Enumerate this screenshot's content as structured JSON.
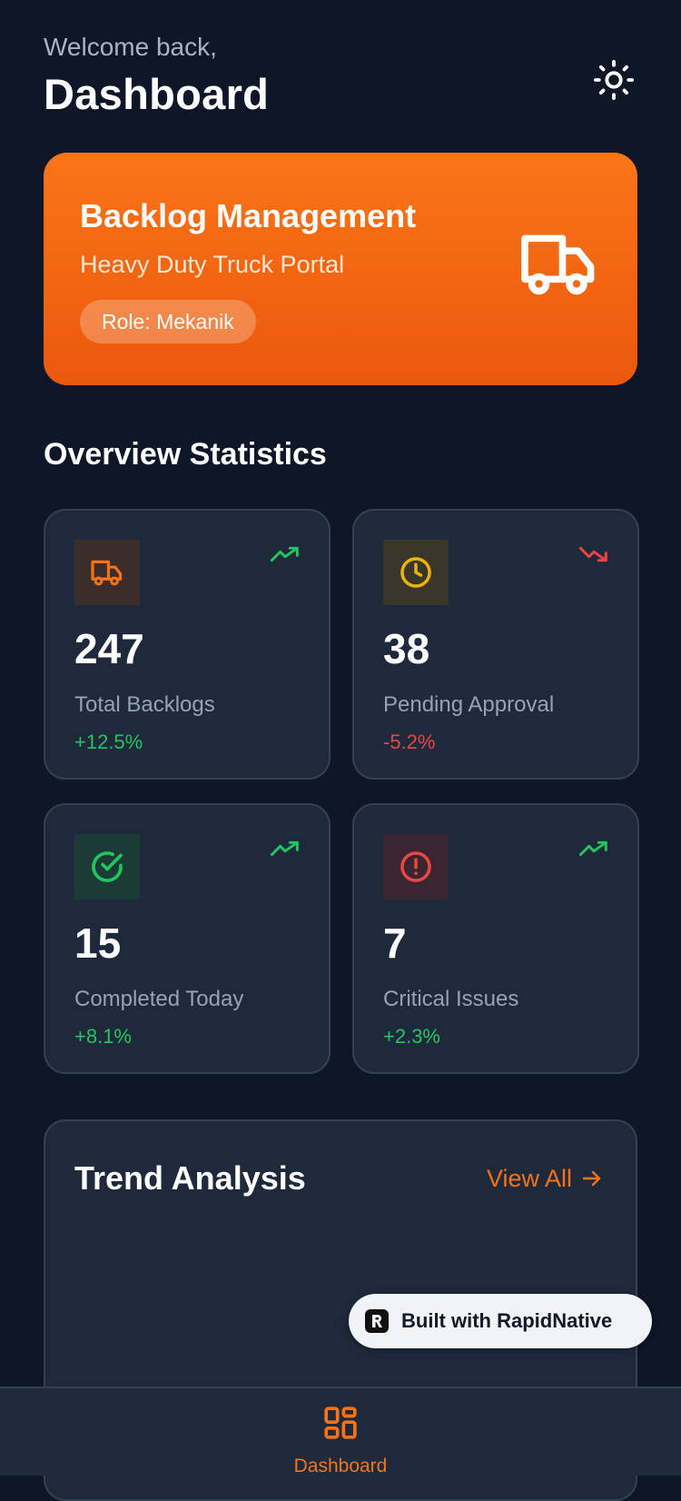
{
  "header": {
    "welcome": "Welcome back,",
    "title": "Dashboard",
    "theme_icon": "sun-icon"
  },
  "hero": {
    "title": "Backlog Management",
    "subtitle": "Heavy Duty Truck Portal",
    "role": "Role: Mekanik",
    "icon": "truck-icon"
  },
  "overview": {
    "title": "Overview Statistics",
    "cards": [
      {
        "value": "247",
        "label": "Total Backlogs",
        "change": "+12.5%",
        "trend": "up",
        "icon": "truck-icon",
        "accent": "#f97316",
        "change_color": "#22c55e"
      },
      {
        "value": "38",
        "label": "Pending Approval",
        "change": "-5.2%",
        "trend": "down",
        "icon": "clock-icon",
        "accent": "#eab308",
        "change_color": "#ef4444"
      },
      {
        "value": "15",
        "label": "Completed Today",
        "change": "+8.1%",
        "trend": "up",
        "icon": "check-circle-icon",
        "accent": "#22c55e",
        "change_color": "#22c55e"
      },
      {
        "value": "7",
        "label": "Critical Issues",
        "change": "+2.3%",
        "trend": "up",
        "icon": "alert-circle-icon",
        "accent": "#ef4444",
        "change_color": "#22c55e"
      }
    ]
  },
  "trend": {
    "title": "Trend Analysis",
    "view_all": "View All"
  },
  "badge": {
    "text": "Built with RapidNative"
  },
  "nav": {
    "items": [
      {
        "label": "Dashboard",
        "icon": "grid-icon",
        "active": true
      }
    ]
  },
  "colors": {
    "background": "#0e1628",
    "card": "#1e293b",
    "accent": "#f97316"
  }
}
